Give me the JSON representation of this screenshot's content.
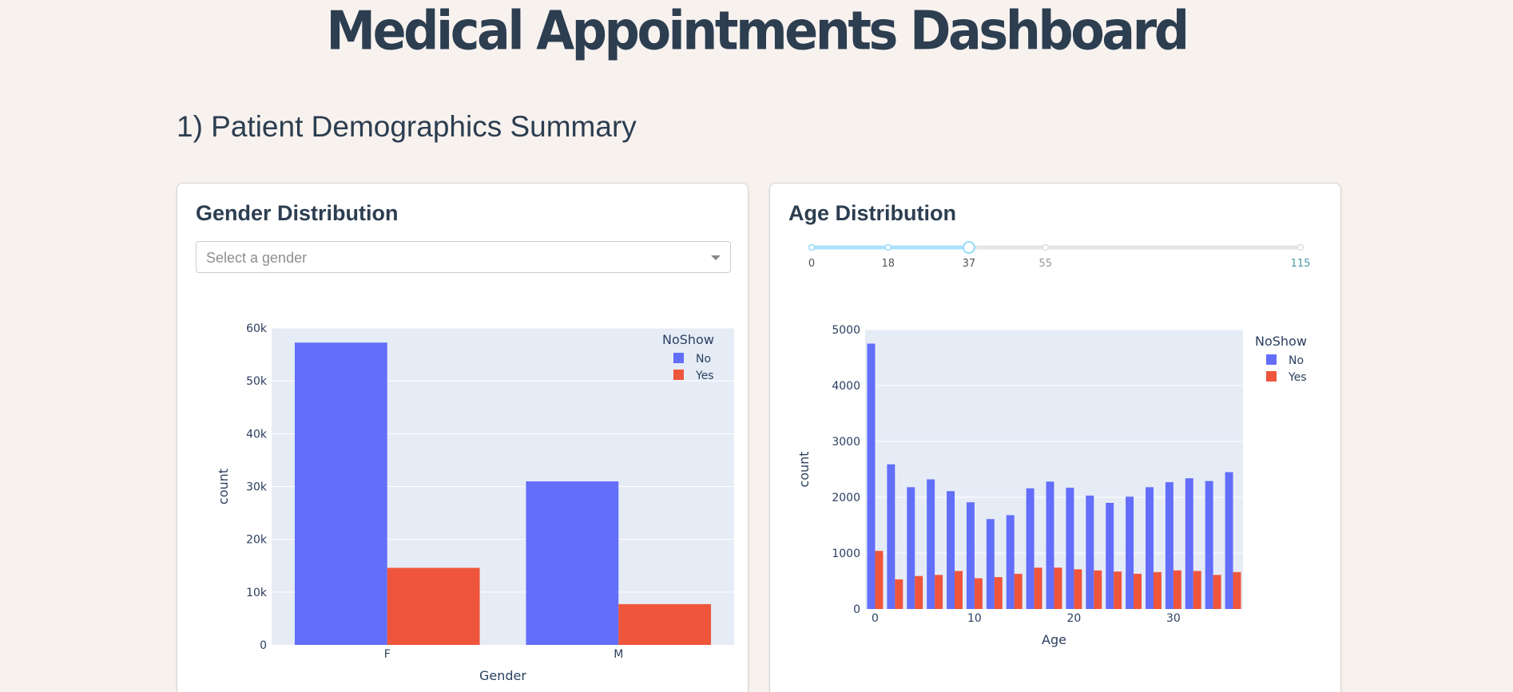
{
  "page": {
    "title": "Medical Appointments Dashboard",
    "section_title": "1) Patient Demographics Summary"
  },
  "gender_card": {
    "title": "Gender Distribution",
    "dropdown_placeholder": "Select a gender"
  },
  "age_card": {
    "title": "Age Distribution",
    "slider": {
      "min": 0,
      "max": 115,
      "value": 37,
      "marks": [
        0,
        18,
        37,
        55,
        115
      ]
    }
  },
  "colors": {
    "no": "#636efa",
    "yes": "#ef553b",
    "plot_bg": "#e5ecf6"
  },
  "chart_data": [
    {
      "type": "bar",
      "xlabel": "Gender",
      "ylabel": "count",
      "categories": [
        "F",
        "M"
      ],
      "series": [
        {
          "name": "No",
          "values": [
            57246,
            30962
          ]
        },
        {
          "name": "Yes",
          "values": [
            14594,
            7725
          ]
        }
      ],
      "ylim": [
        0,
        60000
      ],
      "yticks": [
        "0",
        "10k",
        "20k",
        "30k",
        "40k",
        "50k",
        "60k"
      ],
      "legend_title": "NoShow",
      "legend": "right"
    },
    {
      "type": "bar",
      "xlabel": "Age",
      "ylabel": "count",
      "x": [
        0,
        2,
        4,
        6,
        8,
        10,
        12,
        14,
        16,
        18,
        20,
        22,
        24,
        26,
        28,
        30,
        32,
        34,
        36
      ],
      "series": [
        {
          "name": "No",
          "values": [
            4750,
            2590,
            2180,
            2320,
            2110,
            1910,
            1610,
            1680,
            2160,
            2280,
            2170,
            2030,
            1900,
            2010,
            2180,
            2270,
            2340,
            2290,
            2450
          ]
        },
        {
          "name": "Yes",
          "values": [
            1040,
            530,
            590,
            610,
            680,
            550,
            570,
            630,
            740,
            740,
            710,
            690,
            670,
            630,
            660,
            690,
            680,
            610,
            660
          ]
        }
      ],
      "ylim": [
        0,
        5000
      ],
      "yticks": [
        "0",
        "1000",
        "2000",
        "3000",
        "4000",
        "5000"
      ],
      "xticks": [
        "0",
        "10",
        "20",
        "30"
      ],
      "legend_title": "NoShow",
      "legend": "right"
    }
  ]
}
